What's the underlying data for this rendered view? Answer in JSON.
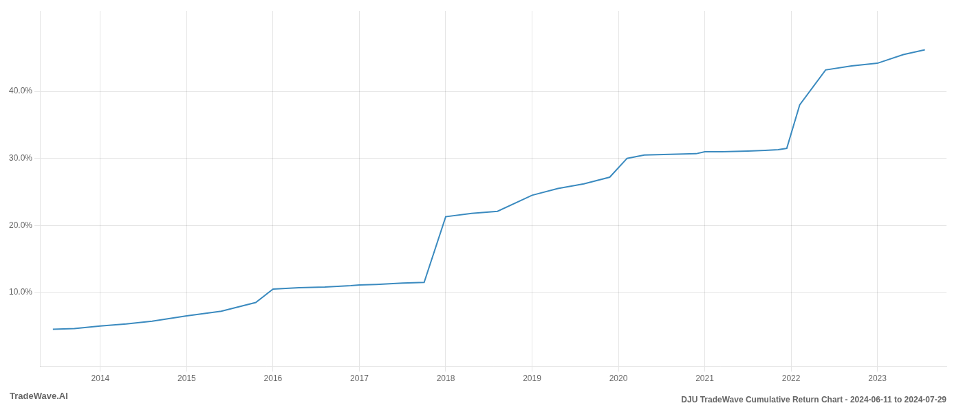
{
  "chart_data": {
    "type": "line",
    "title": "DJU TradeWave Cumulative Return Chart - 2024-06-11 to 2024-07-29",
    "annotations": [
      "TradeWave.AI"
    ],
    "x": [
      2013.45,
      2013.7,
      2014.0,
      2014.3,
      2014.6,
      2015.0,
      2015.4,
      2015.8,
      2016.0,
      2016.3,
      2016.6,
      2016.9,
      2017.0,
      2017.2,
      2017.5,
      2017.75,
      2018.0,
      2018.3,
      2018.6,
      2019.0,
      2019.3,
      2019.6,
      2019.9,
      2020.1,
      2020.3,
      2020.6,
      2020.9,
      2021.0,
      2021.2,
      2021.5,
      2021.7,
      2021.85,
      2021.95,
      2022.1,
      2022.4,
      2022.7,
      2023.0,
      2023.3,
      2023.55
    ],
    "values": [
      4.5,
      4.6,
      5.0,
      5.3,
      5.7,
      6.5,
      7.2,
      8.5,
      10.5,
      10.7,
      10.8,
      11.0,
      11.1,
      11.2,
      11.4,
      11.5,
      21.3,
      21.8,
      22.1,
      24.5,
      25.5,
      26.2,
      27.2,
      30.0,
      30.5,
      30.6,
      30.7,
      31.0,
      31.0,
      31.1,
      31.2,
      31.3,
      31.5,
      38.0,
      43.2,
      43.8,
      44.2,
      45.5,
      46.2
    ],
    "color": "#3a8abf",
    "xlim": [
      2013.3,
      2023.8
    ],
    "ylim": [
      -1,
      52
    ],
    "xticks": [
      2014,
      2015,
      2016,
      2017,
      2018,
      2019,
      2020,
      2021,
      2022,
      2023
    ],
    "yticks": [
      {
        "value": 10.0,
        "label": "10.0%"
      },
      {
        "value": 20.0,
        "label": "20.0%"
      },
      {
        "value": 30.0,
        "label": "30.0%"
      },
      {
        "value": 40.0,
        "label": "40.0%"
      }
    ],
    "grid": true
  }
}
